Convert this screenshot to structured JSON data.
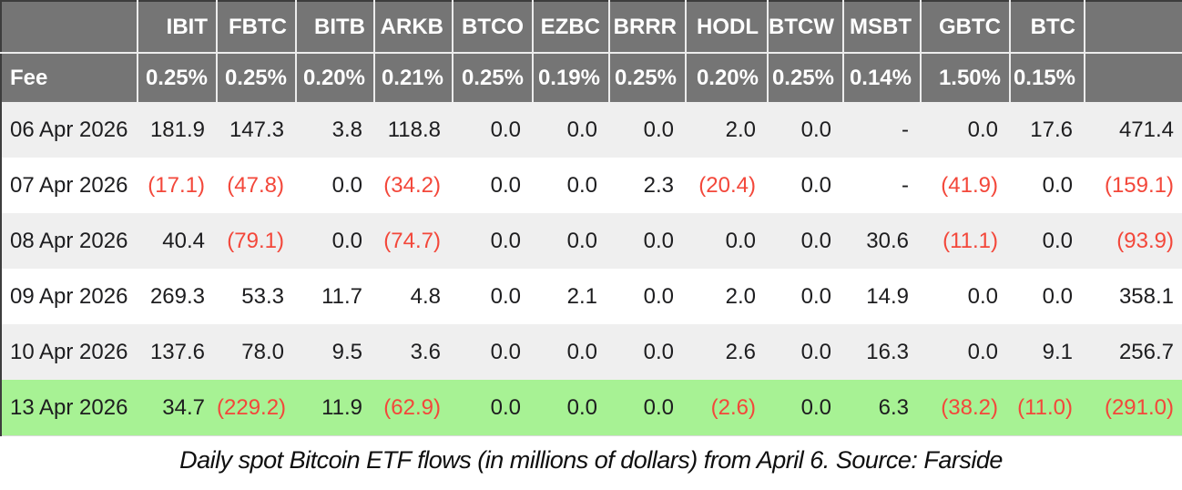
{
  "chart_data": {
    "type": "table",
    "columns": [
      "",
      "IBIT",
      "FBTC",
      "BITB",
      "ARKB",
      "BTCO",
      "EZBC",
      "BRRR",
      "HODL",
      "BTCW",
      "MSBT",
      "GBTC",
      "BTC",
      ""
    ],
    "fee": {
      "label": "Fee",
      "values": [
        "0.25%",
        "0.25%",
        "0.20%",
        "0.21%",
        "0.25%",
        "0.19%",
        "0.25%",
        "0.20%",
        "0.25%",
        "0.14%",
        "1.50%",
        "0.15%",
        ""
      ]
    },
    "rows": [
      {
        "date": "06 Apr 2026",
        "bg": "alt",
        "values": [
          "181.9",
          "147.3",
          "3.8",
          "118.8",
          "0.0",
          "0.0",
          "0.0",
          "2.0",
          "0.0",
          "-",
          "0.0",
          "17.6",
          "471.4"
        ]
      },
      {
        "date": "07 Apr 2026",
        "bg": "white",
        "values": [
          "(17.1)",
          "(47.8)",
          "0.0",
          "(34.2)",
          "0.0",
          "0.0",
          "2.3",
          "(20.4)",
          "0.0",
          "-",
          "(41.9)",
          "0.0",
          "(159.1)"
        ]
      },
      {
        "date": "08 Apr 2026",
        "bg": "alt",
        "values": [
          "40.4",
          "(79.1)",
          "0.0",
          "(74.7)",
          "0.0",
          "0.0",
          "0.0",
          "0.0",
          "0.0",
          "30.6",
          "(11.1)",
          "0.0",
          "(93.9)"
        ]
      },
      {
        "date": "09 Apr 2026",
        "bg": "white",
        "values": [
          "269.3",
          "53.3",
          "11.7",
          "4.8",
          "0.0",
          "2.1",
          "0.0",
          "2.0",
          "0.0",
          "14.9",
          "0.0",
          "0.0",
          "358.1"
        ]
      },
      {
        "date": "10 Apr 2026",
        "bg": "alt",
        "values": [
          "137.6",
          "78.0",
          "9.5",
          "3.6",
          "0.0",
          "0.0",
          "0.0",
          "2.6",
          "0.0",
          "16.3",
          "0.0",
          "9.1",
          "256.7"
        ]
      },
      {
        "date": "13 Apr 2026",
        "bg": "green",
        "values": [
          "34.7",
          "(229.2)",
          "11.9",
          "(62.9)",
          "0.0",
          "0.0",
          "0.0",
          "(2.6)",
          "0.0",
          "6.3",
          "(38.2)",
          "(11.0)",
          "(291.0)"
        ]
      }
    ],
    "caption": "Daily spot Bitcoin ETF flows (in millions of dollars) from April 6. Source: Farside"
  },
  "colors": {
    "header_bg": "#757575",
    "header_text": "#ffffff",
    "row_alt_bg": "#efefef",
    "row_green_bg": "#a7f294",
    "negative": "#f3473a",
    "text": "#1d1d1f",
    "border_light": "#ececec",
    "border_dark": "#3d3d3d"
  }
}
